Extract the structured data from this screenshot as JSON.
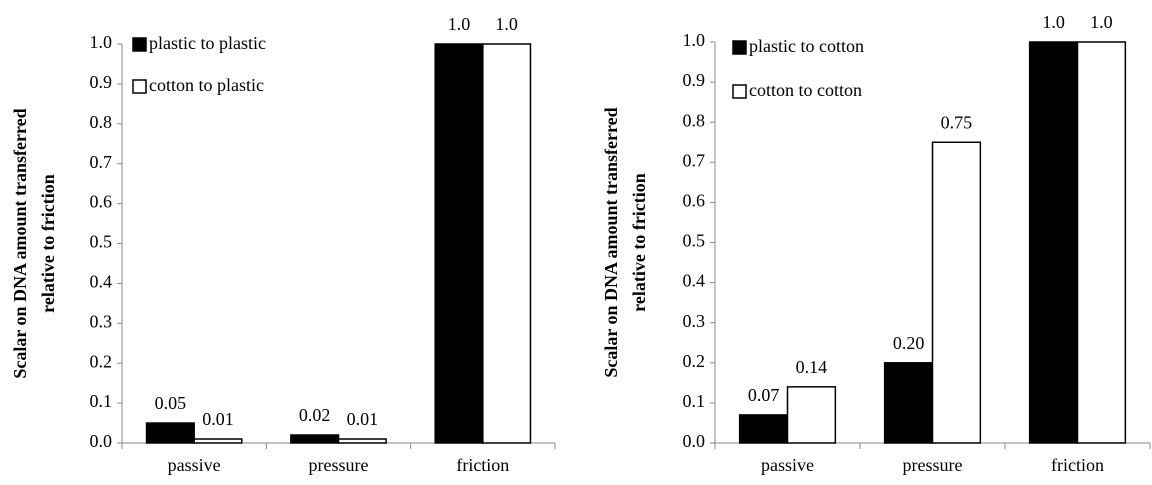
{
  "chart_data": [
    {
      "type": "bar",
      "ylabel": [
        "Scalar on DNA  amount transferred",
        "relative to friction"
      ],
      "categories": [
        "passive",
        "pressure",
        "friction"
      ],
      "series": [
        {
          "name": "plastic to plastic",
          "color": "#000000",
          "values": [
            0.05,
            0.02,
            1.0
          ],
          "value_labels": [
            "0.05",
            "0.02",
            "1.0"
          ]
        },
        {
          "name": "cotton to plastic",
          "color": "#ffffff",
          "values": [
            0.01,
            0.01,
            1.0
          ],
          "value_labels": [
            "0.01",
            "0.01",
            "1.0"
          ]
        }
      ],
      "ylim": [
        0,
        1
      ],
      "yticks": [
        {
          "value": 0,
          "label": "0.0"
        },
        0.1,
        0.2,
        0.3,
        0.4,
        0.5,
        0.6,
        0.7,
        0.8,
        0.9,
        {
          "value": 1,
          "label": "1.0"
        }
      ],
      "legend": "upper left",
      "grid": false
    },
    {
      "type": "bar",
      "ylabel": [
        "Scalar on DNA  amount transferred",
        "relative to friction"
      ],
      "categories": [
        "passive",
        "pressure",
        "friction"
      ],
      "series": [
        {
          "name": "plastic to cotton",
          "color": "#000000",
          "values": [
            0.07,
            0.2,
            1.0
          ],
          "value_labels": [
            "0.07",
            "0.20",
            "1.0"
          ]
        },
        {
          "name": "cotton to cotton",
          "color": "#ffffff",
          "values": [
            0.14,
            0.75,
            1.0
          ],
          "value_labels": [
            "0.14",
            "0.75",
            "1.0"
          ]
        }
      ],
      "ylim": [
        0,
        1
      ],
      "yticks": [
        {
          "value": 0,
          "label": "0.0"
        },
        0.1,
        0.2,
        0.3,
        0.4,
        0.5,
        0.6,
        0.7,
        0.8,
        0.9,
        {
          "value": 1,
          "label": "1.0"
        }
      ],
      "legend": "upper left",
      "grid": false
    }
  ]
}
